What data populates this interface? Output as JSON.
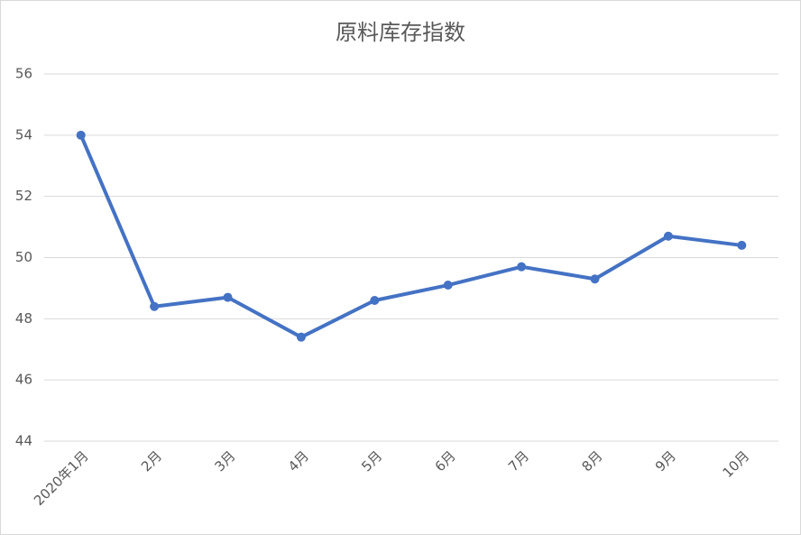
{
  "chart_data": {
    "type": "line",
    "title": "原料库存指数",
    "categories": [
      "2020年1月",
      "2月",
      "3月",
      "4月",
      "5月",
      "6月",
      "7月",
      "8月",
      "9月",
      "10月"
    ],
    "series": [
      {
        "name": "原料库存指数",
        "color": "#4472c4",
        "values": [
          54.0,
          48.4,
          48.7,
          47.4,
          48.6,
          49.1,
          49.7,
          49.3,
          50.7,
          50.4
        ]
      }
    ],
    "ylim": [
      44,
      56
    ],
    "yticks": [
      44,
      46,
      48,
      50,
      52,
      54,
      56
    ],
    "grid": true
  }
}
